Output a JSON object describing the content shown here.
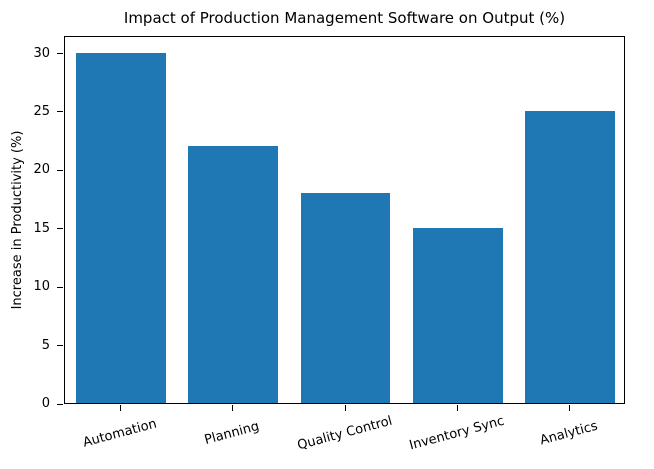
{
  "chart_data": {
    "type": "bar",
    "title": "Impact of Production Management Software on Output (%)",
    "xlabel": "",
    "ylabel": "Increase in Productivity (%)",
    "categories": [
      "Automation",
      "Planning",
      "Quality Control",
      "Inventory Sync",
      "Analytics"
    ],
    "values": [
      30,
      22,
      18,
      15,
      25
    ],
    "yticks": [
      0,
      5,
      10,
      15,
      20,
      25,
      30
    ],
    "ylim": [
      0,
      31.5
    ],
    "bar_color": "#1f77b4",
    "axis_color": "#000000",
    "grid": false,
    "legend_position": "none",
    "bar_width_fraction": 0.8,
    "x_tick_label_rotation_deg": 15
  }
}
